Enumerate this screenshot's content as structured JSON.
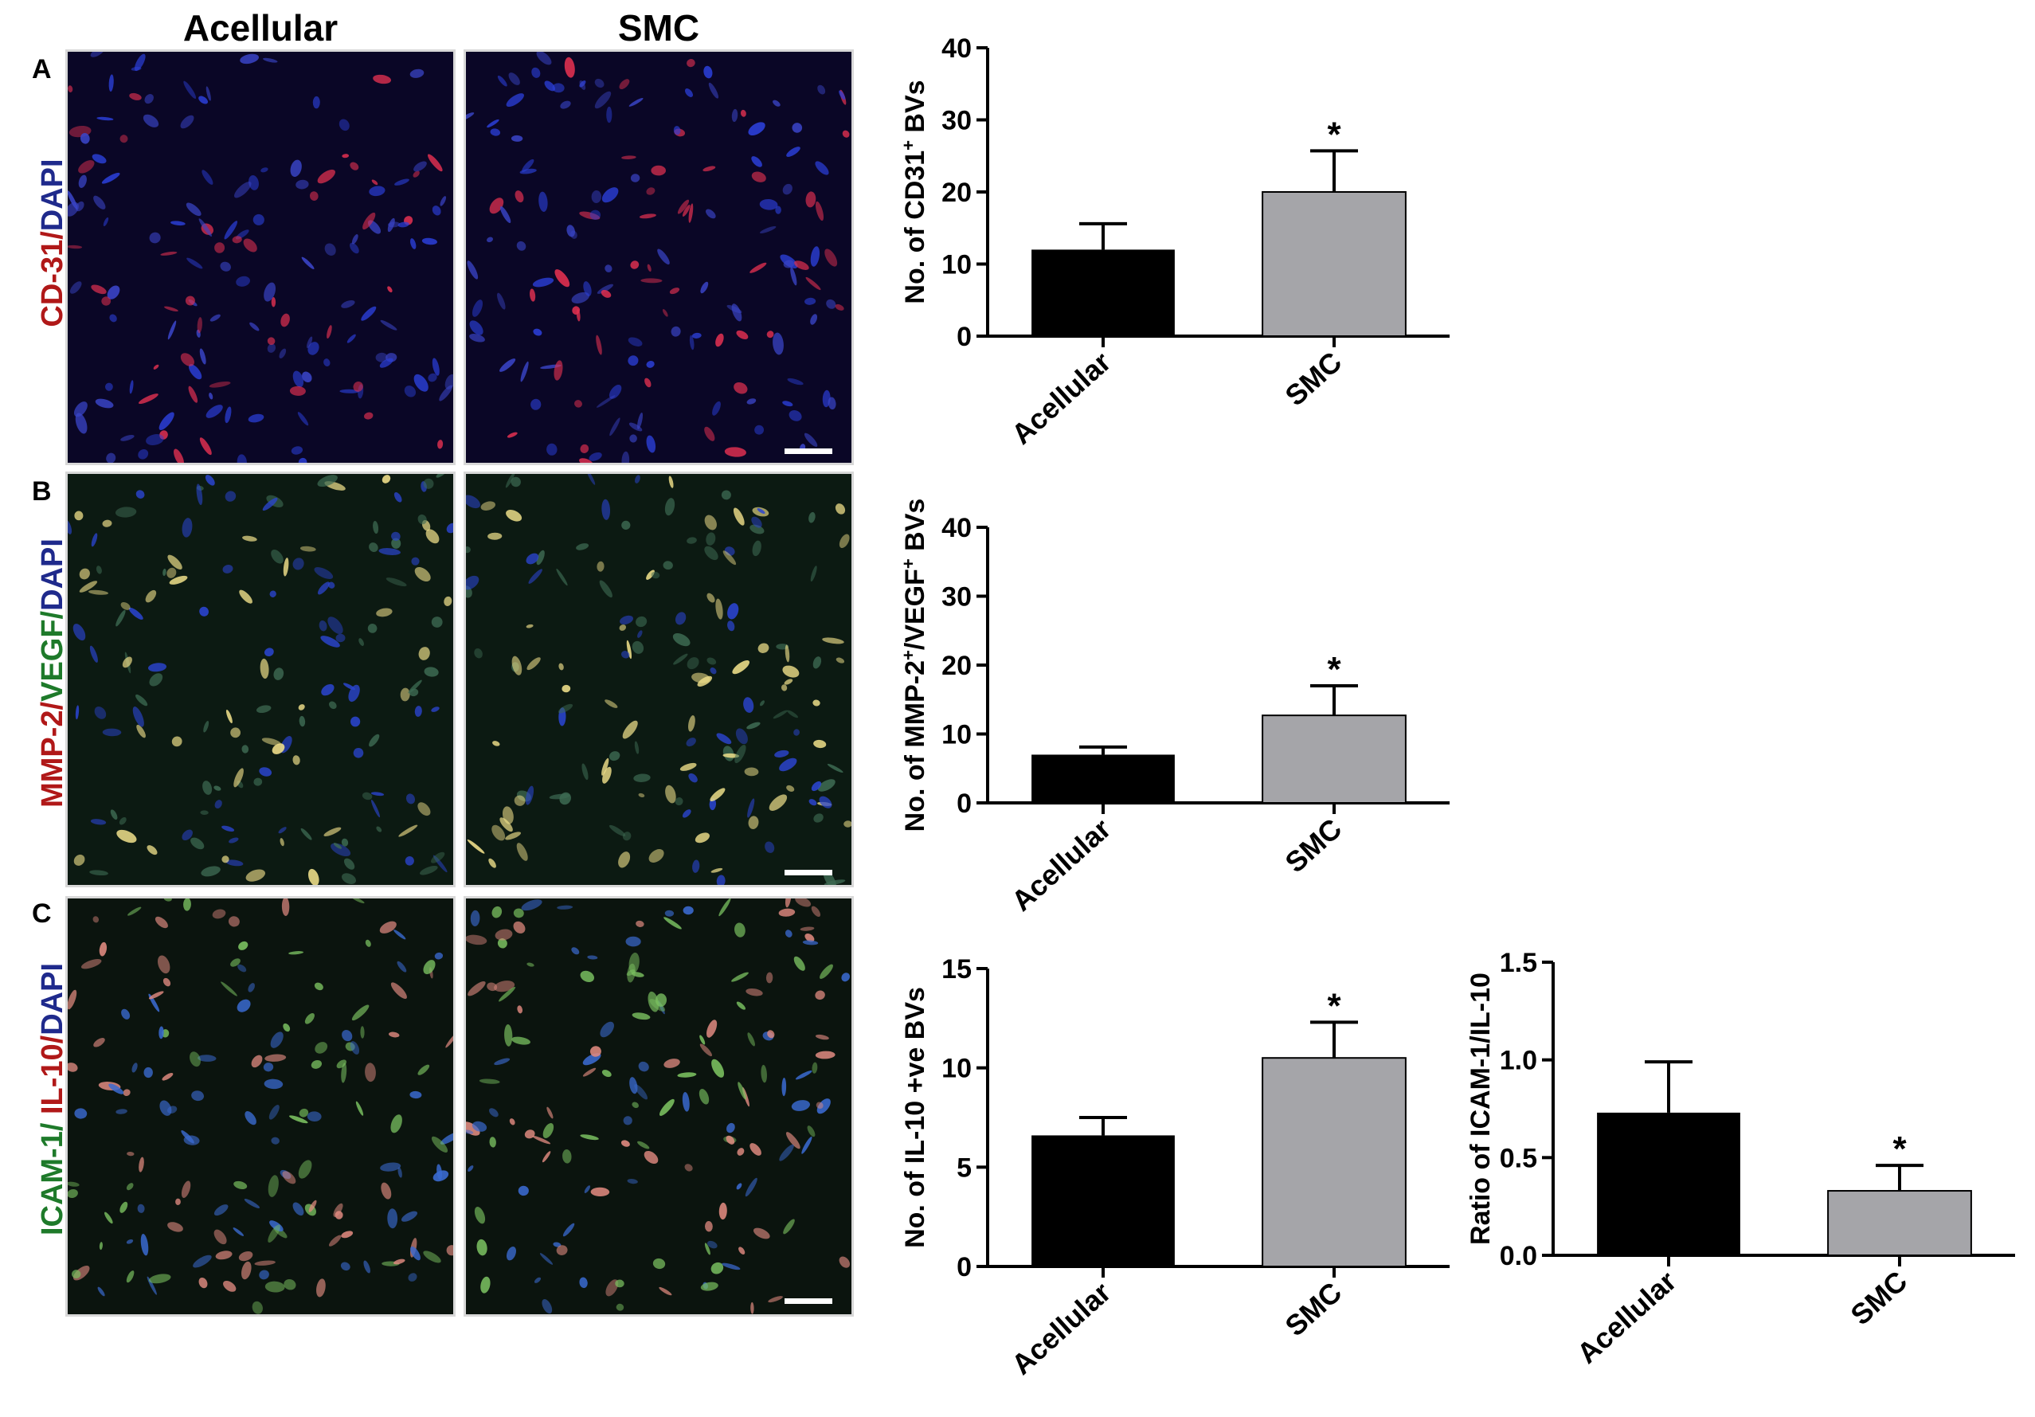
{
  "figure": {
    "column_headers": [
      "Acellular",
      "SMC"
    ],
    "panels": [
      {
        "letter": "A",
        "stain_label": [
          {
            "text": "CD-31",
            "color": "#b01818"
          },
          {
            "text": "/",
            "color": "#b01818"
          },
          {
            "text": "DAPI",
            "color": "#1f2a8c"
          }
        ],
        "background": "#0a0626",
        "cell_colors": [
          "#2b3fd8",
          "#e03050",
          "#3a45c8"
        ]
      },
      {
        "letter": "B",
        "stain_label": [
          {
            "text": "MMP-2",
            "color": "#b01818"
          },
          {
            "text": "/",
            "color": "#b01818"
          },
          {
            "text": "VEGF",
            "color": "#1e7a2a"
          },
          {
            "text": "/",
            "color": "#1e7a2a"
          },
          {
            "text": "DAPI",
            "color": "#1f2a8c"
          }
        ],
        "background": "#0c1a12",
        "cell_colors": [
          "#2b45d0",
          "#3d6a52",
          "#f0e08a"
        ]
      },
      {
        "letter": "C",
        "stain_label": [
          {
            "text": "ICAM-1",
            "color": "#1e7a2a"
          },
          {
            "text": "/ ",
            "color": "#1e7a2a"
          },
          {
            "text": "IL-10",
            "color": "#b01818"
          },
          {
            "text": "/",
            "color": "#b01818"
          },
          {
            "text": "DAPI",
            "color": "#1f2a8c"
          }
        ],
        "background": "#0b140e",
        "cell_colors": [
          "#7ac060",
          "#3a6ad0",
          "#e08a80"
        ]
      }
    ]
  },
  "colors": {
    "acellular_bar": "#000000",
    "smc_bar": "#a5a5a9",
    "axis": "#000000"
  },
  "chart_data": [
    {
      "type": "bar",
      "ylabel_parts": [
        {
          "t": "No. of CD31",
          "sup": false
        },
        {
          "t": "+",
          "sup": true
        },
        {
          "t": " BVs",
          "sup": false
        }
      ],
      "categories": [
        "Acellular",
        "SMC"
      ],
      "values": [
        12,
        20
      ],
      "error": [
        3.6,
        5.7
      ],
      "significance": [
        "",
        "*"
      ],
      "ylim": [
        0,
        40
      ],
      "yticks": [
        0,
        10,
        20,
        30,
        40
      ],
      "ytick_labels": [
        "0",
        "10",
        "20",
        "30",
        "40"
      ]
    },
    {
      "type": "bar",
      "ylabel_parts": [
        {
          "t": "No. of MMP-2",
          "sup": false
        },
        {
          "t": "+",
          "sup": true
        },
        {
          "t": "/VEGF",
          "sup": false
        },
        {
          "t": "+",
          "sup": true
        },
        {
          "t": " BVs",
          "sup": false
        }
      ],
      "categories": [
        "Acellular",
        "SMC"
      ],
      "values": [
        7,
        12.7
      ],
      "error": [
        1.1,
        4.3
      ],
      "significance": [
        "",
        "*"
      ],
      "ylim": [
        0,
        40
      ],
      "yticks": [
        0,
        10,
        20,
        30,
        40
      ],
      "ytick_labels": [
        "0",
        "10",
        "20",
        "30",
        "40"
      ]
    },
    {
      "type": "bar",
      "ylabel_parts": [
        {
          "t": "No. of IL-10 +ve BVs",
          "sup": false
        }
      ],
      "categories": [
        "Acellular",
        "SMC"
      ],
      "values": [
        6.6,
        10.5
      ],
      "error": [
        0.9,
        1.8
      ],
      "significance": [
        "",
        "*"
      ],
      "ylim": [
        0,
        15
      ],
      "yticks": [
        0,
        5,
        10,
        15
      ],
      "ytick_labels": [
        "0",
        "5",
        "10",
        "15"
      ]
    },
    {
      "type": "bar",
      "ylabel_parts": [
        {
          "t": "Ratio of ICAM-1/IL-10",
          "sup": false
        }
      ],
      "categories": [
        "Acellular",
        "SMC"
      ],
      "values": [
        0.73,
        0.33
      ],
      "error": [
        0.26,
        0.13
      ],
      "significance": [
        "",
        "*"
      ],
      "ylim": [
        0,
        1.5
      ],
      "yticks": [
        0,
        0.5,
        1.0,
        1.5
      ],
      "ytick_labels": [
        "0.0",
        "0.5",
        "1.0",
        "1.5"
      ]
    }
  ]
}
